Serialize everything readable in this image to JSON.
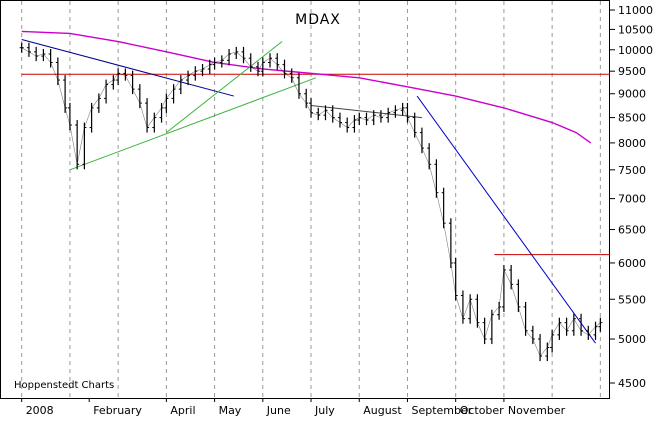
{
  "chart_data": {
    "type": "candlestick",
    "title": "MDAX",
    "credit": "Hoppenstedt Charts",
    "y_ticks": [
      4500,
      5000,
      5500,
      6000,
      6500,
      7000,
      7500,
      8000,
      8500,
      9000,
      9500,
      10000,
      10500,
      11000
    ],
    "y_tick_labels": [
      "4500",
      "5000",
      "5500",
      "6000",
      "6500",
      "7000",
      "7500",
      "8000",
      "8500",
      "9000",
      "9500",
      "10000",
      "10500",
      "11000"
    ],
    "y_scale": "log",
    "x_labels": [
      "2008",
      "February",
      "April",
      "May",
      "June",
      "July",
      "August",
      "September",
      "October",
      "November"
    ],
    "x_label_pos": [
      0.0,
      1.4,
      3.0,
      4.0,
      5.0,
      6.0,
      7.0,
      8.0,
      9.0,
      10.0
    ],
    "grid": "vertical-dashed",
    "series": [
      {
        "kind": "price",
        "color": "#000000",
        "x": [
          0.0,
          0.15,
          0.3,
          0.45,
          0.6,
          0.75,
          0.9,
          1.0,
          1.15,
          1.3,
          1.45,
          1.6,
          1.75,
          1.9,
          2.0,
          2.15,
          2.3,
          2.45,
          2.6,
          2.75,
          2.9,
          3.0,
          3.15,
          3.3,
          3.45,
          3.6,
          3.75,
          3.9,
          4.0,
          4.15,
          4.3,
          4.45,
          4.6,
          4.75,
          4.9,
          5.0,
          5.15,
          5.3,
          5.45,
          5.6,
          5.75,
          5.9,
          6.0,
          6.15,
          6.3,
          6.45,
          6.6,
          6.75,
          6.9,
          7.0,
          7.15,
          7.3,
          7.45,
          7.6,
          7.75,
          7.9,
          8.0,
          8.15,
          8.3,
          8.45,
          8.6,
          8.75,
          8.9,
          9.0,
          9.15,
          9.3,
          9.45,
          9.6,
          9.75,
          9.9,
          10.0,
          10.15,
          10.3,
          10.45,
          10.6,
          10.75,
          10.9,
          11.0,
          11.15,
          11.3,
          11.45,
          11.6,
          11.75,
          11.9,
          12.0
        ],
        "y": [
          10050,
          9950,
          9850,
          9900,
          9700,
          9300,
          8700,
          8350,
          7600,
          8300,
          8700,
          8900,
          9200,
          9300,
          9450,
          9400,
          9100,
          8800,
          8300,
          8500,
          8700,
          8900,
          9100,
          9300,
          9400,
          9500,
          9550,
          9650,
          9700,
          9750,
          9900,
          9950,
          9800,
          9600,
          9500,
          9700,
          9800,
          9650,
          9450,
          9350,
          9000,
          8800,
          8600,
          8550,
          8650,
          8500,
          8400,
          8300,
          8450,
          8500,
          8450,
          8550,
          8500,
          8600,
          8650,
          8700,
          8500,
          8200,
          7900,
          7600,
          7100,
          6600,
          6000,
          5550,
          5250,
          5500,
          5200,
          5000,
          5300,
          5400,
          5900,
          5700,
          5400,
          5100,
          5000,
          4800,
          4900,
          5050,
          5200,
          5100,
          5250,
          5100,
          5050,
          5150,
          5200
        ]
      },
      {
        "kind": "moving-average",
        "color": "#cc00cc",
        "x": [
          0.0,
          1.0,
          2.0,
          3.0,
          4.0,
          5.0,
          6.0,
          6.5,
          7.0,
          8.0,
          8.5,
          9.0,
          10.0,
          10.5,
          11.0,
          11.5,
          11.8
        ],
        "y": [
          10450,
          10400,
          10200,
          9950,
          9700,
          9550,
          9450,
          9400,
          9350,
          9150,
          9050,
          8950,
          8700,
          8550,
          8400,
          8200,
          8000
        ]
      }
    ],
    "trendlines": [
      {
        "color": "#00008b",
        "x": [
          0.0,
          4.4
        ],
        "y": [
          10250,
          8950
        ]
      },
      {
        "color": "#3cb43c",
        "x": [
          1.0,
          6.1
        ],
        "y": [
          7500,
          9350
        ]
      },
      {
        "color": "#3cb43c",
        "x": [
          3.0,
          5.4
        ],
        "y": [
          8200,
          10200
        ]
      },
      {
        "color": "#0000cc",
        "x": [
          8.2,
          11.9
        ],
        "y": [
          8950,
          4950
        ]
      },
      {
        "color": "#444444",
        "x": [
          6.0,
          8.3
        ],
        "y": [
          8750,
          8500
        ]
      }
    ],
    "horizontal_lines": [
      {
        "color": "#cc0000",
        "y": 9430,
        "x_from": 0.0
      },
      {
        "color": "#cc0000",
        "y": 6120,
        "x_from": 9.8
      }
    ]
  }
}
